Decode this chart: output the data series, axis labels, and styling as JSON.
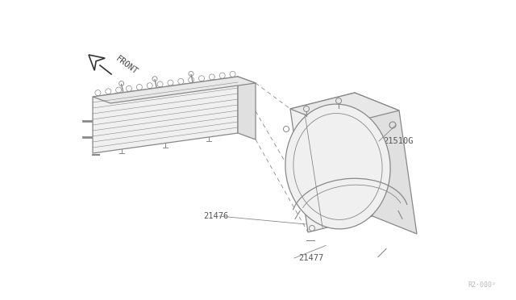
{
  "bg_color": "#ffffff",
  "line_color": "#888888",
  "label_color": "#555555",
  "fig_width": 6.4,
  "fig_height": 3.72,
  "dpi": 100,
  "watermark": "R2·000²"
}
